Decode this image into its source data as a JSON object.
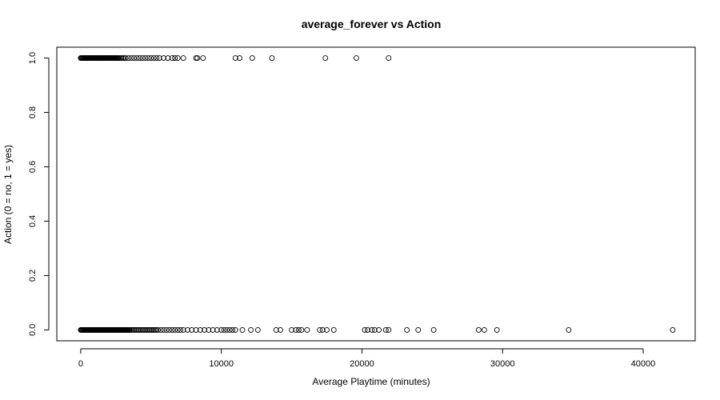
{
  "chart_data": {
    "type": "scatter",
    "title": "average_forever vs Action",
    "xlabel": "Average Playtime (minutes)",
    "ylabel": "Action (0 = no, 1 = yes)",
    "xlim": [
      -1700,
      43700
    ],
    "ylim": [
      -0.04,
      1.04
    ],
    "x_ticks": [
      0,
      10000,
      20000,
      30000,
      40000
    ],
    "x_tick_labels": [
      "0",
      "10000",
      "20000",
      "30000",
      "40000"
    ],
    "y_ticks": [
      0.0,
      0.2,
      0.4,
      0.6,
      0.8,
      1.0
    ],
    "y_tick_labels": [
      "0.0",
      "0.2",
      "0.4",
      "0.6",
      "0.8",
      "1.0"
    ],
    "grid": false,
    "legend": "none",
    "marker": "open circle",
    "point_color": "#000000",
    "series": [
      {
        "x": [
          0,
          50,
          100,
          150,
          200,
          250,
          300,
          350,
          400,
          450,
          500,
          550,
          600,
          650,
          700,
          750,
          800,
          850,
          900,
          950,
          1000,
          1050,
          1100,
          1150,
          1200,
          1250,
          1300,
          1350,
          1400,
          1450,
          1500,
          1550,
          1600,
          1650,
          1700,
          1750,
          1800,
          1850,
          1900,
          1950,
          2000,
          2050,
          2100,
          2150,
          2200,
          2250,
          2300,
          2350,
          2400,
          2450,
          2500,
          2550,
          2600,
          2650,
          2700,
          2750,
          2800,
          2850,
          2900,
          2950,
          3000,
          3050,
          3100,
          3150,
          3200,
          3250,
          3300,
          3350,
          3400,
          3450,
          3500,
          3600,
          3700,
          3800,
          3900,
          4000,
          4100,
          4200,
          4300,
          4400,
          4500,
          4600,
          4700,
          4800,
          4900,
          5000,
          5100,
          5200,
          5300,
          5400,
          5500,
          5700,
          5900,
          6100,
          6300,
          6500,
          6700,
          6900,
          7100,
          7300,
          7600,
          7900,
          8200,
          8500,
          8800,
          9100,
          9400,
          9700,
          10000,
          10200,
          10400,
          10600,
          10800,
          11000,
          11500,
          12100,
          12600,
          13900,
          14200,
          15000,
          15300,
          15500,
          15700,
          16100,
          17000,
          17200,
          17500,
          18000,
          20200,
          20400,
          20700,
          20900,
          21200,
          21700,
          21900,
          23200,
          24000,
          25100,
          28300,
          28700,
          29600,
          34700,
          42100
        ],
        "y": [
          0,
          0,
          0,
          0,
          0,
          0,
          0,
          0,
          0,
          0,
          0,
          0,
          0,
          0,
          0,
          0,
          0,
          0,
          0,
          0,
          0,
          0,
          0,
          0,
          0,
          0,
          0,
          0,
          0,
          0,
          0,
          0,
          0,
          0,
          0,
          0,
          0,
          0,
          0,
          0,
          0,
          0,
          0,
          0,
          0,
          0,
          0,
          0,
          0,
          0,
          0,
          0,
          0,
          0,
          0,
          0,
          0,
          0,
          0,
          0,
          0,
          0,
          0,
          0,
          0,
          0,
          0,
          0,
          0,
          0,
          0,
          0,
          0,
          0,
          0,
          0,
          0,
          0,
          0,
          0,
          0,
          0,
          0,
          0,
          0,
          0,
          0,
          0,
          0,
          0,
          0,
          0,
          0,
          0,
          0,
          0,
          0,
          0,
          0,
          0,
          0,
          0,
          0,
          0,
          0,
          0,
          0,
          0,
          0,
          0,
          0,
          0,
          0,
          0,
          0,
          0,
          0,
          0,
          0,
          0,
          0,
          0,
          0,
          0,
          0,
          0,
          0,
          0,
          0,
          0,
          0,
          0,
          0,
          0,
          0,
          0,
          0,
          0,
          0,
          0,
          0,
          0,
          0
        ]
      },
      {
        "x": [
          0,
          50,
          100,
          150,
          200,
          250,
          300,
          350,
          400,
          450,
          500,
          550,
          600,
          650,
          700,
          750,
          800,
          850,
          900,
          950,
          1000,
          1050,
          1100,
          1150,
          1200,
          1250,
          1300,
          1350,
          1400,
          1450,
          1500,
          1550,
          1600,
          1650,
          1700,
          1750,
          1800,
          1850,
          1900,
          1950,
          2000,
          2050,
          2100,
          2150,
          2200,
          2250,
          2300,
          2350,
          2400,
          2450,
          2500,
          2550,
          2600,
          2650,
          2700,
          2800,
          2900,
          3000,
          3100,
          3200,
          3400,
          3600,
          3800,
          4000,
          4200,
          4400,
          4600,
          4800,
          5000,
          5200,
          5400,
          5600,
          5900,
          6200,
          6500,
          6700,
          6900,
          7300,
          8200,
          8300,
          8700,
          11000,
          11300,
          12200,
          13600,
          17400,
          19600,
          21900
        ],
        "y": [
          1,
          1,
          1,
          1,
          1,
          1,
          1,
          1,
          1,
          1,
          1,
          1,
          1,
          1,
          1,
          1,
          1,
          1,
          1,
          1,
          1,
          1,
          1,
          1,
          1,
          1,
          1,
          1,
          1,
          1,
          1,
          1,
          1,
          1,
          1,
          1,
          1,
          1,
          1,
          1,
          1,
          1,
          1,
          1,
          1,
          1,
          1,
          1,
          1,
          1,
          1,
          1,
          1,
          1,
          1,
          1,
          1,
          1,
          1,
          1,
          1,
          1,
          1,
          1,
          1,
          1,
          1,
          1,
          1,
          1,
          1,
          1,
          1,
          1,
          1,
          1,
          1,
          1,
          1,
          1,
          1,
          1,
          1,
          1,
          1,
          1,
          1,
          1
        ]
      }
    ]
  }
}
